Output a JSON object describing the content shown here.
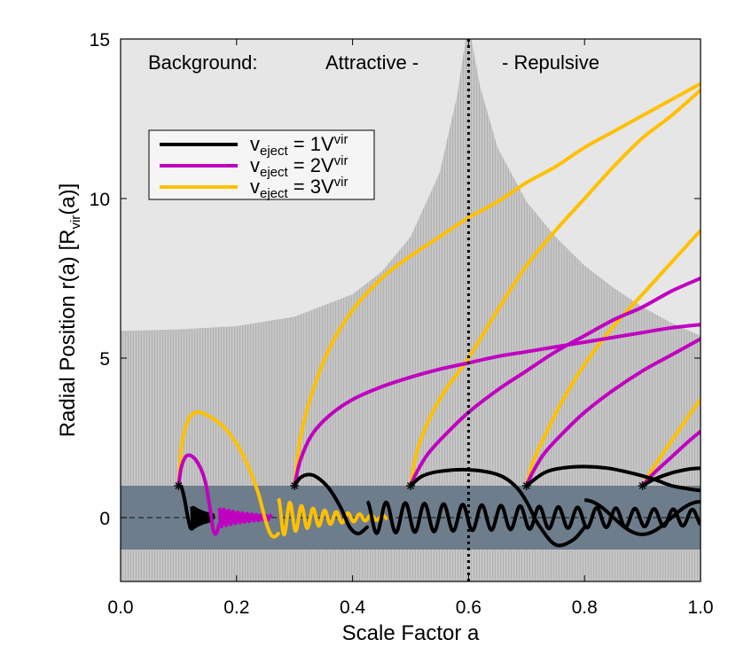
{
  "chart_data": {
    "type": "line",
    "xlabel": "Scale Factor a",
    "ylabel": "Radial Position r(a) [R",
    "ylabel_sub": "vir",
    "ylabel_tail": "(a)]",
    "xlim": [
      0.0,
      1.0
    ],
    "ylim": [
      -2,
      15
    ],
    "xticks": [
      0.0,
      0.2,
      0.4,
      0.6,
      0.8,
      1.0
    ],
    "xtick_labels": [
      "0.0",
      "0.2",
      "0.4",
      "0.6",
      "0.8",
      "1.0"
    ],
    "yticks": [
      0,
      5,
      10,
      15
    ],
    "ytick_labels": [
      "0",
      "5",
      "10",
      "15"
    ],
    "grid": false,
    "legend_position": "upper-left",
    "annotations": {
      "background": "Background:",
      "attractive": "Attractive -",
      "repulsive": "- Repulsive"
    },
    "vertical_line_x": 0.6,
    "virial_band": [
      -1,
      1
    ],
    "transition_boundary": {
      "x": [
        0.0,
        0.1,
        0.2,
        0.3,
        0.4,
        0.45,
        0.5,
        0.55,
        0.58,
        0.595,
        0.6,
        0.605,
        0.62,
        0.65,
        0.7,
        0.75,
        0.8,
        0.85,
        0.9,
        0.95,
        1.0
      ],
      "y": [
        5.85,
        5.9,
        6.0,
        6.3,
        7.0,
        7.7,
        8.8,
        10.8,
        13.2,
        15.0,
        15.0,
        15.0,
        13.5,
        11.6,
        9.9,
        8.8,
        7.9,
        7.2,
        6.6,
        6.1,
        5.7
      ]
    },
    "colors": {
      "1V": "#000000",
      "2V": "#c000c0",
      "3V": "#ffc000",
      "light_bg": "#e6e6e6",
      "dark_bg": "#bebebe",
      "band": "#6e7d8c"
    },
    "legend": [
      {
        "prefix": "v",
        "sub": "eject",
        "mid": " = 1V",
        "sup": "vir",
        "color": "#000000"
      },
      {
        "prefix": "v",
        "sub": "eject",
        "mid": " = 2V",
        "sup": "vir",
        "color": "#c000c0"
      },
      {
        "prefix": "v",
        "sub": "eject",
        "mid": " = 3V",
        "sup": "vir",
        "color": "#ffc000"
      }
    ],
    "ejection_points": [
      {
        "x": 0.1,
        "y": 1
      },
      {
        "x": 0.3,
        "y": 1
      },
      {
        "x": 0.5,
        "y": 1
      },
      {
        "x": 0.7,
        "y": 1
      },
      {
        "x": 0.9,
        "y": 1
      }
    ],
    "series": [
      {
        "group": "3V",
        "x": [
          0.1,
          0.105,
          0.115,
          0.13,
          0.15,
          0.18,
          0.21,
          0.235,
          0.25,
          0.258,
          0.265,
          0.272
        ],
        "y": [
          1.0,
          2.2,
          3.0,
          3.3,
          3.2,
          2.8,
          2.0,
          0.9,
          -0.1,
          -0.5,
          -0.6,
          -0.5
        ]
      },
      {
        "group": "3V",
        "x": [
          0.3,
          0.31,
          0.33,
          0.36,
          0.4,
          0.45,
          0.5,
          0.55,
          0.6,
          0.65,
          0.7,
          0.75,
          0.8,
          0.85,
          0.9,
          0.95,
          1.0
        ],
        "y": [
          1.0,
          2.5,
          3.9,
          5.3,
          6.5,
          7.5,
          8.2,
          8.8,
          9.4,
          9.9,
          10.5,
          11.0,
          11.6,
          12.1,
          12.6,
          13.1,
          13.6
        ]
      },
      {
        "group": "3V",
        "x": [
          0.5,
          0.51,
          0.53,
          0.56,
          0.6,
          0.65,
          0.7,
          0.75,
          0.8,
          0.85,
          0.9,
          0.95,
          1.0
        ],
        "y": [
          1.0,
          2.0,
          3.0,
          4.0,
          5.0,
          6.5,
          7.9,
          9.0,
          10.0,
          11.0,
          11.9,
          12.6,
          13.4
        ]
      },
      {
        "group": "3V",
        "x": [
          0.7,
          0.71,
          0.73,
          0.76,
          0.8,
          0.85,
          0.9,
          0.95,
          1.0
        ],
        "y": [
          1.0,
          1.7,
          2.5,
          3.6,
          4.8,
          6.0,
          7.0,
          8.0,
          9.0
        ]
      },
      {
        "group": "3V",
        "x": [
          0.9,
          0.92,
          0.95,
          0.98,
          1.0
        ],
        "y": [
          1.0,
          1.6,
          2.4,
          3.2,
          3.7
        ]
      },
      {
        "group": "2V",
        "x": [
          0.1,
          0.105,
          0.115,
          0.13,
          0.145,
          0.155,
          0.16,
          0.165,
          0.17
        ],
        "y": [
          1.0,
          1.6,
          1.95,
          1.8,
          1.2,
          0.2,
          -0.4,
          -0.5,
          -0.2
        ]
      },
      {
        "group": "2V",
        "x": [
          0.3,
          0.31,
          0.33,
          0.36,
          0.4,
          0.45,
          0.5,
          0.55,
          0.6,
          0.65,
          0.7,
          0.75,
          0.8,
          0.85,
          0.9,
          0.95,
          1.0
        ],
        "y": [
          1.0,
          1.8,
          2.6,
          3.2,
          3.7,
          4.1,
          4.4,
          4.65,
          4.85,
          5.05,
          5.2,
          5.35,
          5.5,
          5.65,
          5.8,
          5.95,
          6.05
        ]
      },
      {
        "group": "2V",
        "x": [
          0.5,
          0.51,
          0.53,
          0.56,
          0.6,
          0.65,
          0.7,
          0.75,
          0.8,
          0.85,
          0.9,
          0.95,
          1.0
        ],
        "y": [
          1.0,
          1.4,
          2.0,
          2.6,
          3.3,
          4.0,
          4.6,
          5.2,
          5.7,
          6.2,
          6.6,
          7.1,
          7.5
        ]
      },
      {
        "group": "2V",
        "x": [
          0.7,
          0.71,
          0.73,
          0.76,
          0.8,
          0.85,
          0.9,
          0.95,
          1.0
        ],
        "y": [
          1.0,
          1.4,
          2.0,
          2.6,
          3.3,
          4.0,
          4.6,
          5.1,
          5.6
        ]
      },
      {
        "group": "2V",
        "x": [
          0.9,
          0.92,
          0.95,
          0.98,
          1.0
        ],
        "y": [
          1.0,
          1.4,
          1.9,
          2.4,
          2.7
        ]
      },
      {
        "group": "1V",
        "x": [
          0.1,
          0.105,
          0.11,
          0.115,
          0.12,
          0.123
        ],
        "y": [
          1.0,
          0.95,
          0.6,
          0.1,
          -0.3,
          -0.35
        ]
      },
      {
        "group": "1V",
        "x": [
          0.3,
          0.31,
          0.325,
          0.34,
          0.36,
          0.38,
          0.395,
          0.41,
          0.425
        ],
        "y": [
          1.0,
          1.25,
          1.35,
          1.25,
          0.9,
          0.3,
          -0.3,
          -0.5,
          -0.3
        ]
      },
      {
        "group": "1V",
        "x": [
          0.5,
          0.52,
          0.55,
          0.6,
          0.65,
          0.68,
          0.7,
          0.72,
          0.75,
          0.78,
          0.8
        ],
        "y": [
          1.0,
          1.3,
          1.45,
          1.5,
          1.35,
          1.0,
          0.5,
          -0.2,
          -0.85,
          -0.7,
          -0.3
        ]
      },
      {
        "group": "1V",
        "x": [
          0.7,
          0.73,
          0.76,
          0.8,
          0.84,
          0.88,
          0.92,
          0.95,
          0.98,
          1.0
        ],
        "y": [
          1.0,
          1.4,
          1.55,
          1.6,
          1.55,
          1.4,
          1.2,
          1.0,
          0.9,
          0.85
        ]
      },
      {
        "group": "1V",
        "x": [
          0.9,
          0.92,
          0.95,
          0.98,
          1.0
        ],
        "y": [
          1.0,
          1.2,
          1.4,
          1.52,
          1.55
        ]
      }
    ],
    "damped_oscillations": [
      {
        "group": "1V",
        "start": 0.123,
        "end": 0.16,
        "amp": 0.35,
        "period": 0.003,
        "decay": 40
      },
      {
        "group": "2V",
        "start": 0.17,
        "end": 0.26,
        "amp": 0.3,
        "period": 0.008,
        "decay": 18
      },
      {
        "group": "3V",
        "start": 0.272,
        "end": 0.46,
        "amp": 0.6,
        "period": 0.02,
        "decay": 12
      },
      {
        "group": "1V",
        "start": 0.425,
        "end": 1.0,
        "amp": 0.5,
        "period": 0.033,
        "decay": 1.2
      },
      {
        "group": "1V",
        "start": 0.8,
        "end": 1.0,
        "amp": 0.55,
        "period": 0.2,
        "decay": 0.5
      }
    ]
  }
}
